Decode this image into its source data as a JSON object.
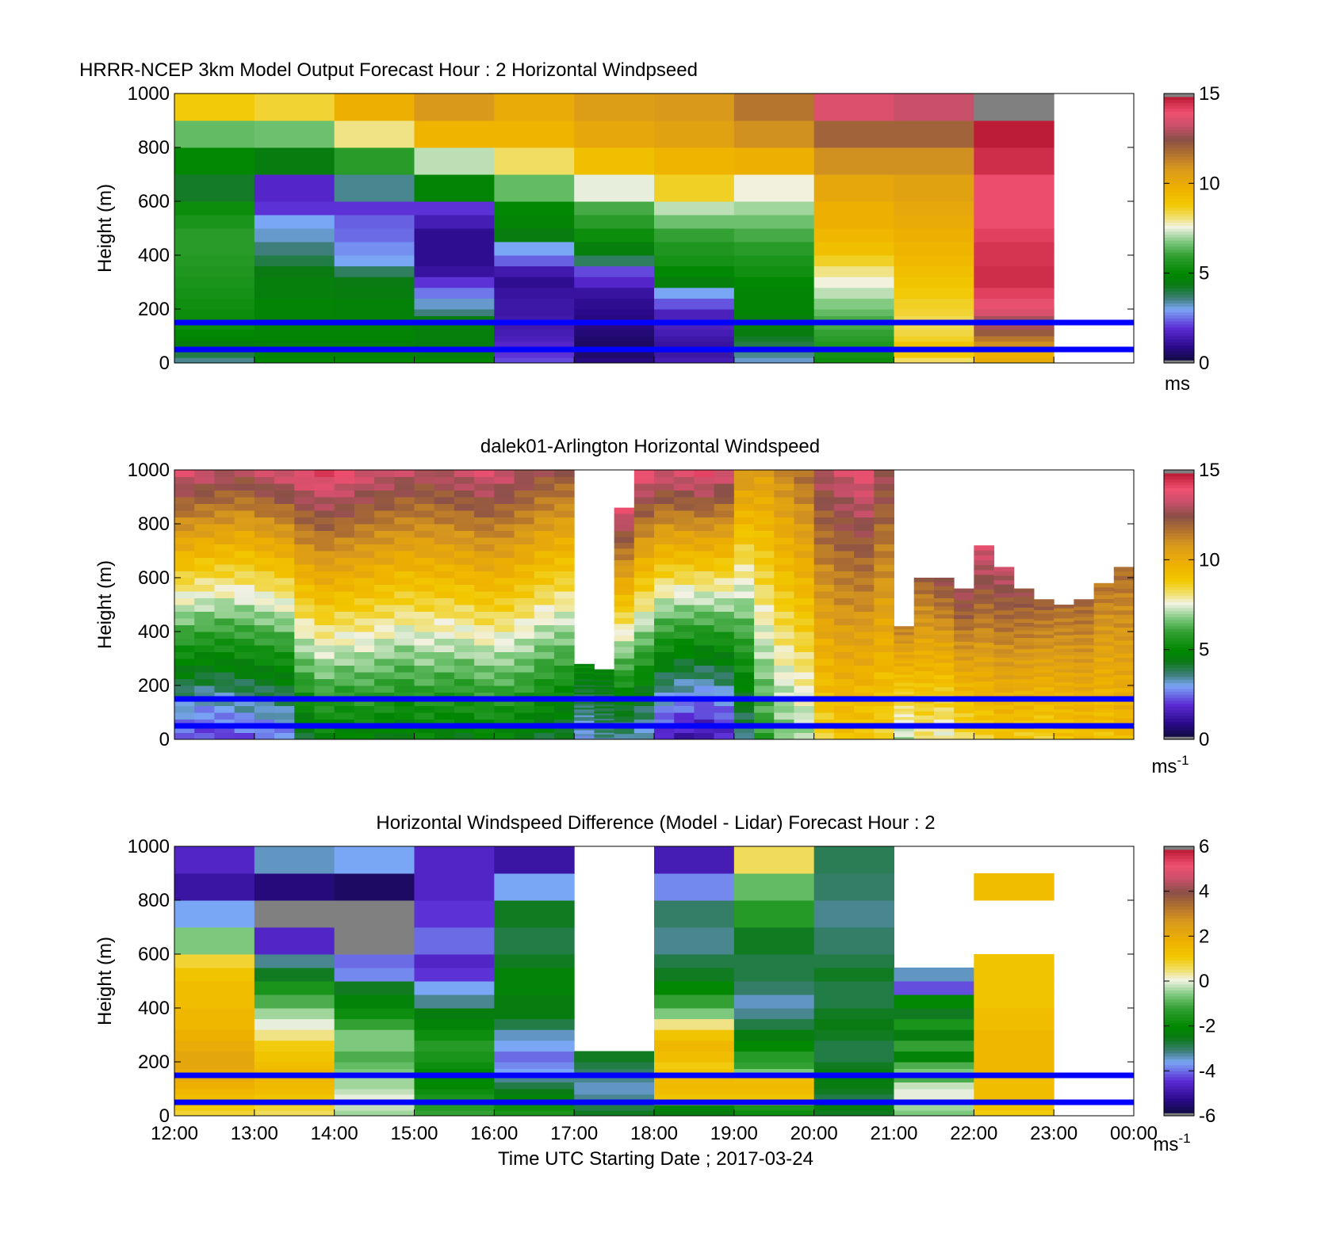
{
  "figure": {
    "xlabel": "Time UTC  Starting Date ; 2017-03-24",
    "x_tick_labels": [
      "12:00",
      "13:00",
      "14:00",
      "15:00",
      "16:00",
      "17:00",
      "18:00",
      "19:00",
      "20:00",
      "21:00",
      "22:00",
      "23:00",
      "00:00"
    ],
    "reference_lines_m": [
      50,
      150
    ],
    "reference_line_color": "#0000ff"
  },
  "chart_data": [
    {
      "type": "heatmap",
      "title": "HRRR-NCEP 3km Model Output   Forecast Hour : 2 Horizontal Windpseed",
      "ylabel": "Height (m)",
      "ylim": [
        0,
        1000
      ],
      "yticks": [
        0,
        200,
        400,
        600,
        800,
        1000
      ],
      "colorbar": {
        "min": 0,
        "max": 15,
        "ticks": [
          0,
          5,
          10,
          15
        ],
        "unit": "ms",
        "unit_sup": ""
      },
      "x_hours": [
        "12:00",
        "13:00",
        "14:00",
        "15:00",
        "16:00",
        "17:00",
        "18:00",
        "19:00",
        "20:00",
        "21:00",
        "22:00"
      ],
      "height_bins_m": [
        0,
        20,
        40,
        60,
        80,
        100,
        125,
        150,
        175,
        200,
        240,
        280,
        320,
        360,
        400,
        450,
        500,
        550,
        600,
        700,
        800,
        900,
        1000
      ],
      "values_ms": [
        [
          3.5,
          5.0,
          5.0,
          5.0,
          2.2,
          0.8,
          1.5,
          3.2,
          5.2,
          8.2,
          10.0
        ],
        [
          4.0,
          4.8,
          4.8,
          4.6,
          2.0,
          0.6,
          1.3,
          3.5,
          5.4,
          8.8,
          9.8
        ],
        [
          4.2,
          4.6,
          4.6,
          4.5,
          1.8,
          0.5,
          1.2,
          3.8,
          5.5,
          9.2,
          10.4
        ],
        [
          4.5,
          4.6,
          4.6,
          4.5,
          1.8,
          0.5,
          1.2,
          4.0,
          5.6,
          9.0,
          11.0
        ],
        [
          4.8,
          4.8,
          4.8,
          4.6,
          1.6,
          0.6,
          1.3,
          4.2,
          5.8,
          8.6,
          11.5
        ],
        [
          5.0,
          4.8,
          4.8,
          4.6,
          1.5,
          0.7,
          1.5,
          4.5,
          6.0,
          8.4,
          12.2
        ],
        [
          5.2,
          4.8,
          4.8,
          4.6,
          1.4,
          0.8,
          1.6,
          4.6,
          6.2,
          8.3,
          12.8
        ],
        [
          5.2,
          4.8,
          4.8,
          4.6,
          1.4,
          0.8,
          1.6,
          4.6,
          6.2,
          8.3,
          12.8
        ],
        [
          5.2,
          4.8,
          4.7,
          3.6,
          1.3,
          0.9,
          1.6,
          4.8,
          6.5,
          8.5,
          13.5
        ],
        [
          5.3,
          4.8,
          4.7,
          3.2,
          1.3,
          1.0,
          2.3,
          4.8,
          6.8,
          8.6,
          13.8
        ],
        [
          5.4,
          4.6,
          4.5,
          2.6,
          1.2,
          1.2,
          3.0,
          4.8,
          7.2,
          8.8,
          14.2
        ],
        [
          5.5,
          4.6,
          4.4,
          2.0,
          1.0,
          1.8,
          4.6,
          5.0,
          7.6,
          9.0,
          14.5
        ],
        [
          5.6,
          4.4,
          3.8,
          1.2,
          1.4,
          2.2,
          5.0,
          5.3,
          8.0,
          9.2,
          14.5
        ],
        [
          5.7,
          4.0,
          3.0,
          1.0,
          2.4,
          3.8,
          5.4,
          5.5,
          8.6,
          9.4,
          14.4
        ],
        [
          5.8,
          3.6,
          2.8,
          1.0,
          3.0,
          4.6,
          5.6,
          5.8,
          9.2,
          9.6,
          14.4
        ],
        [
          5.8,
          3.2,
          2.5,
          1.0,
          4.5,
          5.2,
          6.0,
          6.2,
          9.5,
          9.8,
          14.2
        ],
        [
          5.5,
          3.0,
          2.4,
          1.5,
          4.8,
          5.8,
          6.6,
          6.6,
          9.8,
          10.0,
          14.0
        ],
        [
          5.2,
          2.0,
          2.0,
          2.0,
          5.0,
          6.2,
          7.2,
          7.0,
          9.8,
          10.2,
          14.0
        ],
        [
          4.2,
          1.8,
          3.5,
          4.8,
          6.5,
          7.5,
          8.6,
          7.6,
          10.2,
          10.4,
          14.0
        ],
        [
          5.0,
          4.5,
          5.8,
          7.2,
          8.2,
          9.2,
          9.6,
          9.8,
          11.0,
          11.0,
          14.5
        ],
        [
          6.5,
          6.6,
          8.0,
          9.6,
          9.6,
          10.2,
          10.4,
          11.0,
          12.0,
          12.0,
          14.8
        ],
        [
          8.8,
          8.5,
          9.8,
          10.8,
          10.0,
          10.6,
          10.8,
          11.6,
          13.6,
          13.2,
          15.5
        ]
      ]
    },
    {
      "type": "heatmap",
      "title": "dalek01-Arlington  Horizontal Windspeed",
      "ylabel": "Height (m)",
      "ylim": [
        0,
        1000
      ],
      "yticks": [
        0,
        200,
        400,
        600,
        800,
        1000
      ],
      "colorbar": {
        "min": 0,
        "max": 15,
        "ticks": [
          0,
          5,
          10,
          15
        ],
        "unit": "ms",
        "unit_sup": "-1"
      },
      "time_step_min": 15,
      "profile_hours": [
        12.0,
        12.25,
        12.5,
        12.75,
        13.0,
        13.25,
        13.5,
        13.75,
        14.0,
        14.25,
        14.5,
        14.75,
        15.0,
        15.25,
        15.5,
        15.75,
        16.0,
        16.25,
        16.5,
        16.75,
        17.0,
        17.25,
        17.5,
        17.75,
        18.0,
        18.25,
        18.5,
        18.75,
        19.0,
        19.25,
        19.5,
        19.75,
        20.0,
        20.25,
        20.5,
        20.75,
        21.0,
        21.25,
        21.5,
        21.75,
        22.0,
        22.25,
        22.5,
        22.75,
        23.0,
        23.25,
        23.5,
        23.75
      ],
      "profile_top_m": [
        1000,
        1000,
        1000,
        1000,
        1000,
        1000,
        1000,
        1000,
        1000,
        1000,
        1000,
        1000,
        1000,
        1000,
        1000,
        1000,
        1000,
        1000,
        1000,
        1000,
        280,
        260,
        860,
        1000,
        1000,
        1000,
        1000,
        1000,
        1000,
        1000,
        1000,
        1000,
        1000,
        1000,
        1000,
        1000,
        420,
        600,
        600,
        560,
        720,
        640,
        560,
        520,
        500,
        520,
        580,
        640
      ],
      "profile_surface_ms": [
        2.2,
        2.0,
        2.1,
        2.3,
        2.4,
        2.6,
        4.2,
        4.8,
        4.6,
        4.8,
        4.6,
        4.4,
        4.8,
        4.6,
        4.5,
        4.8,
        4.8,
        4.6,
        4.2,
        4.0,
        3.0,
        3.6,
        3.4,
        3.0,
        1.8,
        1.4,
        1.2,
        1.6,
        3.6,
        5.8,
        6.6,
        7.0,
        8.6,
        9.0,
        8.8,
        8.6,
        7.2,
        8.0,
        7.6,
        8.2,
        8.6,
        9.0,
        8.8,
        8.6,
        9.0,
        9.2,
        9.0,
        9.4
      ],
      "profile_top_ms": [
        13.6,
        13.4,
        13.2,
        13.0,
        13.4,
        13.6,
        14.0,
        14.2,
        14.0,
        13.6,
        13.4,
        13.2,
        13.0,
        13.2,
        13.4,
        13.6,
        13.4,
        13.0,
        12.6,
        12.4,
        5.0,
        4.8,
        13.8,
        14.0,
        13.6,
        13.8,
        14.0,
        13.6,
        11.0,
        10.6,
        11.2,
        11.8,
        13.0,
        13.4,
        13.8,
        12.8,
        11.4,
        12.0,
        12.6,
        13.0,
        13.6,
        13.2,
        12.6,
        12.2,
        11.8,
        12.0,
        11.6,
        11.8
      ]
    },
    {
      "type": "heatmap",
      "title": "Horizontal Windspeed Difference (Model - Lidar) Forecast Hour : 2",
      "ylabel": "Height (m)",
      "ylim": [
        0,
        1000
      ],
      "yticks": [
        0,
        200,
        400,
        600,
        800,
        1000
      ],
      "colorbar": {
        "min": -6,
        "max": 6,
        "ticks": [
          -6,
          -4,
          -2,
          0,
          2,
          4,
          6
        ],
        "unit": "ms",
        "unit_sup": "-1"
      },
      "x_hours": [
        "12:00",
        "13:00",
        "14:00",
        "15:00",
        "16:00",
        "17:00",
        "18:00",
        "19:00",
        "20:00",
        "21:00",
        "22:00"
      ],
      "height_bins_m": [
        0,
        20,
        40,
        60,
        80,
        100,
        125,
        150,
        175,
        200,
        240,
        280,
        320,
        360,
        400,
        450,
        500,
        550,
        600,
        700,
        800,
        900,
        1000
      ],
      "values_ms": [
        [
          0.8,
          0.6,
          -0.4,
          -1.2,
          -1.6,
          -2.6,
          -2.4,
          -1.8,
          -2.6,
          -0.6,
          1.0
        ],
        [
          1.0,
          0.8,
          -0.2,
          -1.4,
          -1.8,
          -2.8,
          -2.2,
          -1.6,
          -2.4,
          -0.4,
          1.2
        ],
        [
          1.2,
          1.0,
          0.2,
          -1.5,
          -2.0,
          -3.0,
          1.0,
          1.0,
          -2.6,
          -0.2,
          1.2
        ],
        [
          1.4,
          1.2,
          0.0,
          -1.6,
          -2.2,
          -3.2,
          1.2,
          1.2,
          -2.8,
          0.0,
          1.4
        ],
        [
          1.6,
          1.4,
          -0.2,
          -1.8,
          -2.5,
          -3.4,
          1.4,
          1.4,
          -2.6,
          0.0,
          1.4
        ],
        [
          1.8,
          1.5,
          -0.4,
          -2.0,
          -2.8,
          -3.4,
          1.5,
          1.5,
          -2.5,
          -0.2,
          1.4
        ],
        [
          2.0,
          1.6,
          -0.4,
          -2.0,
          -3.2,
          -3.2,
          1.5,
          1.4,
          -2.4,
          -1.0,
          1.4
        ],
        [
          2.0,
          1.6,
          -0.6,
          -2.0,
          -3.6,
          -3.0,
          1.2,
          -0.6,
          -2.4,
          -0.6,
          1.6
        ],
        [
          2.2,
          1.4,
          -0.8,
          -1.8,
          -3.8,
          -2.8,
          1.0,
          -1.2,
          -2.6,
          -1.0,
          1.6
        ],
        [
          2.2,
          1.2,
          -1.0,
          -1.6,
          -4.0,
          -2.6,
          1.4,
          -1.4,
          -2.8,
          -2.2,
          1.6
        ],
        [
          2.0,
          1.0,
          -0.6,
          -1.4,
          -3.6,
          null,
          1.6,
          -2.0,
          -2.8,
          -1.2,
          1.6
        ],
        [
          1.8,
          0.4,
          -0.6,
          -1.8,
          -3.4,
          null,
          1.2,
          -2.4,
          -2.6,
          -2.4,
          1.6
        ],
        [
          1.6,
          0.0,
          -1.2,
          -2.2,
          -2.8,
          null,
          0.4,
          -2.8,
          -2.5,
          -1.6,
          1.4
        ],
        [
          1.6,
          -0.4,
          -1.8,
          -2.4,
          -2.4,
          null,
          -0.6,
          -3.2,
          -2.6,
          -2.6,
          1.4
        ],
        [
          1.4,
          -1.0,
          -2.2,
          -3.2,
          -2.4,
          null,
          -1.2,
          -3.4,
          -2.8,
          -2.0,
          1.2
        ],
        [
          1.4,
          -1.6,
          -2.6,
          -3.6,
          -2.2,
          null,
          -2.0,
          -3.0,
          -2.8,
          -4.2,
          1.2
        ],
        [
          1.2,
          -2.6,
          -3.8,
          -4.4,
          -2.2,
          null,
          -2.6,
          -2.8,
          -2.6,
          -3.4,
          1.2
        ],
        [
          0.8,
          -3.2,
          -4.0,
          -4.6,
          -2.6,
          null,
          -2.8,
          -2.8,
          -2.8,
          null,
          1.2
        ],
        [
          -0.6,
          -4.6,
          6.0,
          -4.0,
          -2.8,
          null,
          -3.2,
          -2.6,
          -3.0,
          null,
          null
        ],
        [
          -3.6,
          6.0,
          6.0,
          -4.4,
          -2.6,
          null,
          -3.0,
          -1.4,
          -3.2,
          null,
          null
        ],
        [
          -5.0,
          -5.4,
          -5.6,
          -4.6,
          -3.6,
          null,
          -3.8,
          -0.8,
          -3.0,
          null,
          1.4
        ],
        [
          -4.6,
          -3.4,
          -3.6,
          -4.6,
          -5.0,
          null,
          -4.8,
          0.6,
          -2.9,
          null,
          null
        ]
      ]
    }
  ]
}
